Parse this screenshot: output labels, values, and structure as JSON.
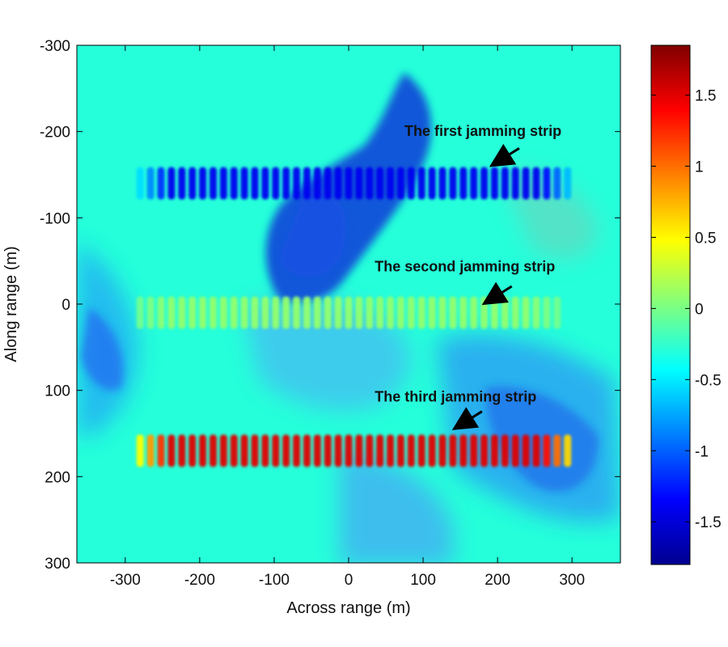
{
  "chart_data": {
    "type": "heatmap",
    "title": "",
    "xlabel": "Across range (m)",
    "ylabel": "Along range (m)",
    "xlim": [
      -365,
      365
    ],
    "ylim": [
      -300,
      300
    ],
    "y_axis_reversed": true,
    "x_ticks": [
      -300,
      -200,
      -100,
      0,
      100,
      200,
      300
    ],
    "y_ticks": [
      -300,
      -200,
      -100,
      0,
      100,
      200,
      300
    ],
    "colorbar": {
      "colormap": "jet",
      "range": [
        -1.8,
        1.85
      ],
      "ticks": [
        -1.5,
        -1,
        -0.5,
        0,
        0.5,
        1,
        1.5
      ]
    },
    "background_value": -0.3,
    "strips": [
      {
        "label": "The first jamming strip",
        "y_center": -140,
        "x_range": [
          -280,
          300
        ],
        "value": -1.4,
        "arrow_tip": [
          190,
          -160
        ],
        "text_pos": [
          75,
          -195
        ]
      },
      {
        "label": "The second jamming strip",
        "y_center": 10,
        "x_range": [
          -280,
          280
        ],
        "value": 0.1,
        "arrow_tip": [
          180,
          0
        ],
        "text_pos": [
          35,
          -38
        ]
      },
      {
        "label": "The third jamming strip",
        "y_center": 170,
        "x_range": [
          -280,
          300
        ],
        "value": 1.5,
        "arrow_tip": [
          140,
          145
        ],
        "text_pos": [
          35,
          113
        ]
      }
    ],
    "grid": false,
    "legend": "none"
  }
}
